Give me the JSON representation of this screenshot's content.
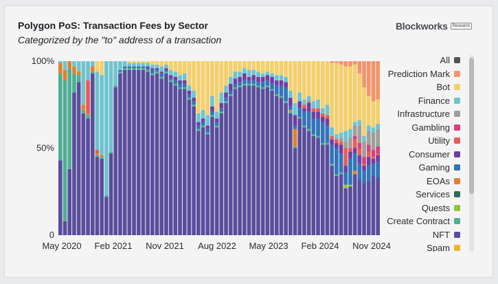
{
  "title": "Polygon PoS: Transaction Fees by Sector",
  "subtitle": "Categorized by the \"to\" address of a transaction",
  "brand": {
    "name": "Blockworks",
    "tag": "Research"
  },
  "chart_data": {
    "type": "bar",
    "stacked": true,
    "normalized": true,
    "ylim": [
      0,
      100
    ],
    "y_ticks": [
      "0",
      "50%",
      "100%"
    ],
    "x_ticks": [
      "May 2020",
      "Feb 2021",
      "Nov 2021",
      "Aug 2022",
      "May 2023",
      "Feb 2024",
      "Nov 2024"
    ],
    "legend": [
      {
        "name": "All",
        "color": "#555555"
      },
      {
        "name": "Prediction Mark",
        "color": "#f4936b"
      },
      {
        "name": "Bot",
        "color": "#f4cf6b"
      },
      {
        "name": "Finance",
        "color": "#6fc3cf"
      },
      {
        "name": "Infrastructure",
        "color": "#9e9e9a"
      },
      {
        "name": "Gambling",
        "color": "#d6407f"
      },
      {
        "name": "Utility",
        "color": "#e85b58"
      },
      {
        "name": "Consumer",
        "color": "#6e3fa0"
      },
      {
        "name": "Gaming",
        "color": "#3274b8"
      },
      {
        "name": "EOAs",
        "color": "#e0822b"
      },
      {
        "name": "Services",
        "color": "#2f6b5a"
      },
      {
        "name": "Quests",
        "color": "#8cc63f"
      },
      {
        "name": "Create Contract",
        "color": "#4fae94"
      },
      {
        "name": "NFT",
        "color": "#5a4d9c"
      },
      {
        "name": "Spam",
        "color": "#f0b429"
      }
    ],
    "series_order": [
      "NFT",
      "Create Contract",
      "Quests",
      "Services",
      "EOAs",
      "Gaming",
      "Consumer",
      "Utility",
      "Gambling",
      "Infrastructure",
      "Finance",
      "Bot",
      "Prediction Mark"
    ],
    "bars": [
      {
        "NFT": 43,
        "Create Contract": 50,
        "Finance": 1,
        "EOAs": 6
      },
      {
        "NFT": 8,
        "Create Contract": 81,
        "Finance": 5,
        "EOAs": 6
      },
      {
        "NFT": 38,
        "Create Contract": 58,
        "EOAs": 4
      },
      {
        "NFT": 82,
        "Create Contract": 11,
        "Finance": 3,
        "EOAs": 4
      },
      {
        "NFT": 88,
        "Create Contract": 4,
        "Finance": 6,
        "EOAs": 2
      },
      {
        "NFT": 70,
        "Create Contract": 2,
        "Finance": 25,
        "EOAs": 3
      },
      {
        "NFT": 67,
        "Create Contract": 2,
        "Utility": 19,
        "Finance": 11,
        "EOAs": 1
      },
      {
        "NFT": 93,
        "Create Contract": 1,
        "Finance": 3,
        "EOAs": 3
      },
      {
        "NFT": 45,
        "Create Contract": 1,
        "EOAs": 1,
        "Utility": 2,
        "Finance": 45,
        "Bot": 6
      },
      {
        "NFT": 44,
        "Create Contract": 1,
        "EOAs": 1,
        "Finance": 46,
        "Bot": 8
      },
      {
        "NFT": 22,
        "Create Contract": 1,
        "Finance": 77
      },
      {
        "NFT": 47,
        "Create Contract": 1,
        "Finance": 52
      },
      {
        "NFT": 85,
        "Create Contract": 1,
        "Finance": 14
      },
      {
        "NFT": 93,
        "Create Contract": 1,
        "Gaming": 1,
        "Finance": 5
      },
      {
        "NFT": 95,
        "Create Contract": 1,
        "Gaming": 1,
        "Finance": 3
      },
      {
        "NFT": 95,
        "Create Contract": 1,
        "Gaming": 1,
        "Finance": 2,
        "Bot": 1
      },
      {
        "NFT": 95,
        "Create Contract": 1,
        "Gaming": 1,
        "Finance": 2,
        "Bot": 1
      },
      {
        "NFT": 95,
        "Create Contract": 1,
        "Gaming": 1,
        "Finance": 2,
        "Bot": 1
      },
      {
        "NFT": 95,
        "Create Contract": 1,
        "Gaming": 1,
        "Finance": 2,
        "Bot": 1
      },
      {
        "NFT": 94,
        "Create Contract": 1,
        "Gaming": 1,
        "Consumer": 1,
        "Finance": 2,
        "Bot": 1
      },
      {
        "NFT": 92,
        "Create Contract": 1,
        "Gaming": 2,
        "Consumer": 1,
        "Finance": 2,
        "Bot": 2
      },
      {
        "NFT": 93,
        "Create Contract": 1,
        "Gaming": 1,
        "Consumer": 1,
        "Finance": 2,
        "Bot": 2
      },
      {
        "NFT": 90,
        "Create Contract": 1,
        "Gaming": 2,
        "Consumer": 1,
        "Finance": 3,
        "Bot": 3
      },
      {
        "NFT": 93,
        "Create Contract": 1,
        "Gaming": 1,
        "Consumer": 1,
        "Finance": 2,
        "Bot": 2
      },
      {
        "NFT": 88,
        "Create Contract": 1,
        "Gaming": 1,
        "Consumer": 2,
        "Finance": 3,
        "Bot": 5
      },
      {
        "NFT": 86,
        "Create Contract": 1,
        "Gaming": 2,
        "Consumer": 2,
        "Finance": 3,
        "Bot": 6
      },
      {
        "NFT": 84,
        "Create Contract": 1,
        "Gaming": 2,
        "Consumer": 2,
        "Finance": 3,
        "Bot": 8
      },
      {
        "NFT": 84,
        "Create Contract": 1,
        "Gaming": 2,
        "Consumer": 2,
        "Finance": 4,
        "Bot": 7
      },
      {
        "NFT": 78,
        "Create Contract": 1,
        "Gaming": 2,
        "Consumer": 2,
        "Finance": 3,
        "Bot": 14
      },
      {
        "NFT": 74,
        "Create Contract": 1,
        "Gaming": 2,
        "Consumer": 2,
        "Finance": 4,
        "Bot": 17
      },
      {
        "NFT": 60,
        "Create Contract": 1,
        "Gaming": 2,
        "Consumer": 2,
        "Finance": 5,
        "Bot": 30
      },
      {
        "NFT": 62,
        "Create Contract": 1,
        "Gaming": 2,
        "Consumer": 2,
        "Finance": 5,
        "Bot": 28
      },
      {
        "NFT": 58,
        "Create Contract": 1,
        "Gaming": 2,
        "Consumer": 2,
        "Finance": 6,
        "Bot": 31
      },
      {
        "NFT": 68,
        "Create Contract": 1,
        "Gaming": 2,
        "Consumer": 3,
        "Finance": 6,
        "Bot": 20
      },
      {
        "NFT": 62,
        "Create Contract": 1,
        "Gaming": 2,
        "Consumer": 2,
        "Finance": 4,
        "Bot": 29
      },
      {
        "NFT": 70,
        "Create Contract": 1,
        "Gaming": 2,
        "Consumer": 3,
        "Finance": 6,
        "Bot": 18
      },
      {
        "NFT": 76,
        "Create Contract": 1,
        "Gaming": 2,
        "Consumer": 3,
        "Finance": 4,
        "Bot": 14
      },
      {
        "NFT": 80,
        "Create Contract": 1,
        "Gaming": 2,
        "Consumer": 4,
        "Finance": 4,
        "Bot": 9
      },
      {
        "NFT": 84,
        "Create Contract": 1,
        "Gaming": 2,
        "Consumer": 3,
        "Finance": 4,
        "Bot": 6
      },
      {
        "NFT": 85,
        "Create Contract": 1,
        "Gaming": 2,
        "Consumer": 3,
        "Finance": 3,
        "Bot": 6
      },
      {
        "NFT": 86,
        "Create Contract": 1,
        "Gaming": 2,
        "Consumer": 4,
        "Finance": 3,
        "Bot": 4
      },
      {
        "NFT": 86,
        "Create Contract": 1,
        "Gaming": 2,
        "Consumer": 2,
        "Finance": 4,
        "Bot": 5
      },
      {
        "NFT": 86,
        "Create Contract": 1,
        "Gaming": 2,
        "Consumer": 3,
        "Finance": 3,
        "Bot": 5
      },
      {
        "NFT": 85,
        "Create Contract": 1,
        "Gaming": 2,
        "Consumer": 3,
        "Finance": 3,
        "Bot": 6
      },
      {
        "NFT": 84,
        "Create Contract": 1,
        "Gaming": 3,
        "Consumer": 3,
        "Finance": 2,
        "Bot": 7
      },
      {
        "NFT": 85,
        "Create Contract": 1,
        "Gaming": 3,
        "Consumer": 3,
        "Finance": 2,
        "Bot": 6
      },
      {
        "NFT": 83,
        "Create Contract": 1,
        "Gaming": 3,
        "Consumer": 4,
        "Finance": 2,
        "Bot": 7
      },
      {
        "NFT": 80,
        "Create Contract": 1,
        "Gaming": 5,
        "Consumer": 3,
        "Finance": 3,
        "Bot": 8
      },
      {
        "NFT": 79,
        "Create Contract": 1,
        "Gaming": 6,
        "Consumer": 3,
        "Finance": 3,
        "Bot": 8
      },
      {
        "NFT": 76,
        "Create Contract": 1,
        "Gaming": 8,
        "Consumer": 3,
        "Finance": 3,
        "Bot": 9
      },
      {
        "NFT": 70,
        "Create Contract": 1,
        "Gaming": 2,
        "EOAs": 1,
        "Consumer": 5,
        "Finance": 4,
        "Bot": 17
      },
      {
        "NFT": 50,
        "Create Contract": 1,
        "EOAs": 10,
        "Gaming": 2,
        "Consumer": 6,
        "Finance": 7,
        "Bot": 24
      },
      {
        "NFT": 67,
        "Create Contract": 1,
        "Gaming": 5,
        "Consumer": 4,
        "Finance": 5,
        "Bot": 18
      },
      {
        "NFT": 62,
        "Create Contract": 1,
        "Gaming": 8,
        "Consumer": 2,
        "Finance": 3,
        "Utility": 2,
        "Bot": 22
      },
      {
        "NFT": 60,
        "Create Contract": 1,
        "Gaming": 10,
        "Consumer": 5,
        "Finance": 3,
        "Utility": 1,
        "Bot": 20
      },
      {
        "NFT": 57,
        "Create Contract": 1,
        "Gaming": 9,
        "Consumer": 4,
        "Finance": 4,
        "Utility": 2,
        "Bot": 23
      },
      {
        "NFT": 56,
        "Create Contract": 1,
        "Gaming": 10,
        "Consumer": 4,
        "Finance": 5,
        "Utility": 2,
        "Bot": 22
      },
      {
        "NFT": 52,
        "Create Contract": 1,
        "Gaming": 12,
        "Consumer": 3,
        "Finance": 3,
        "Utility": 2,
        "Bot": 27
      },
      {
        "NFT": 52,
        "Create Contract": 1,
        "Gaming": 10,
        "Consumer": 4,
        "Finance": 6,
        "Utility": 2,
        "Bot": 25
      },
      {
        "NFT": 40,
        "Create Contract": 1,
        "Gaming": 11,
        "Consumer": 3,
        "Finance": 5,
        "Utility": 2,
        "Bot": 37,
        "Prediction Mark": 1
      },
      {
        "NFT": 34,
        "Create Contract": 1,
        "Gaming": 15,
        "Consumer": 3,
        "Finance": 2,
        "Utility": 2,
        "Infrastructure": 1,
        "Bot": 41,
        "Prediction Mark": 1
      },
      {
        "NFT": 35,
        "Create Contract": 1,
        "Gaming": 11,
        "Consumer": 5,
        "Finance": 3,
        "Utility": 2,
        "Infrastructure": 2,
        "Bot": 39,
        "Prediction Mark": 2
      },
      {
        "NFT": 27,
        "Quests": 2,
        "Gaming": 7,
        "Consumer": 4,
        "Utility": 10,
        "Finance": 6,
        "Infrastructure": 4,
        "Bot": 37,
        "Prediction Mark": 3
      },
      {
        "NFT": 28,
        "Quests": 1,
        "Gaming": 15,
        "Consumer": 4,
        "Finance": 5,
        "Utility": 2,
        "Infrastructure": 6,
        "Bot": 36,
        "Prediction Mark": 3
      },
      {
        "NFT": 35,
        "EOAs": 2,
        "Gaming": 10,
        "Consumer": 3,
        "Utility": 5,
        "Gambling": 2,
        "Finance": 2,
        "Infrastructure": 6,
        "Bot": 33,
        "Prediction Mark": 2
      },
      {
        "NFT": 32,
        "Gaming": 9,
        "Consumer": 5,
        "Utility": 4,
        "Gambling": 3,
        "Finance": 3,
        "Infrastructure": 10,
        "Bot": 27,
        "Prediction Mark": 7
      },
      {
        "NFT": 30,
        "Gaming": 7,
        "Consumer": 3,
        "Utility": 1,
        "Gambling": 4,
        "Finance": 3,
        "Infrastructure": 9,
        "Bot": 28,
        "Prediction Mark": 15
      },
      {
        "NFT": 31,
        "Gaming": 9,
        "Consumer": 5,
        "Utility": 3,
        "Gambling": 4,
        "Finance": 3,
        "Infrastructure": 8,
        "Bot": 17,
        "Prediction Mark": 20
      },
      {
        "NFT": 34,
        "Gaming": 7,
        "Consumer": 3,
        "Utility": 1,
        "Gambling": 4,
        "Finance": 3,
        "Infrastructure": 10,
        "Bot": 15,
        "Prediction Mark": 23
      },
      {
        "NFT": 33,
        "Gaming": 9,
        "Consumer": 4,
        "Utility": 1,
        "Gambling": 4,
        "Finance": 3,
        "Infrastructure": 10,
        "Bot": 14,
        "Prediction Mark": 22
      }
    ]
  }
}
